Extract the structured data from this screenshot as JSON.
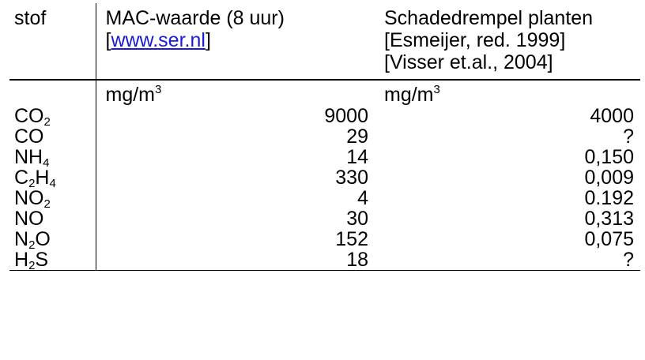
{
  "table": {
    "header": {
      "stof": "stof",
      "mac_line1": "MAC-waarde (8 uur)",
      "mac_bracket_open": "[",
      "mac_link": "www.ser.nl",
      "mac_bracket_close": "]",
      "schade_line1": "Schadedrempel planten",
      "schade_line2": "[Esmeijer, red. 1999]",
      "schade_line3": "[Visser et.al., 2004]"
    },
    "units": {
      "mac": {
        "base": "mg/m",
        "sup": "3"
      },
      "schade": {
        "base": "mg/m",
        "sup": "3"
      }
    },
    "rows": [
      {
        "stof": [
          {
            "t": "CO"
          },
          {
            "sub": "2"
          }
        ],
        "mac": "9000",
        "schade": "4000"
      },
      {
        "stof": [
          {
            "t": "CO"
          }
        ],
        "mac": "29",
        "schade": "?"
      },
      {
        "stof": [
          {
            "t": "NH"
          },
          {
            "sub": "4"
          }
        ],
        "mac": "14",
        "schade": "0,150"
      },
      {
        "stof": [
          {
            "t": "C"
          },
          {
            "sub": "2"
          },
          {
            "t": "H"
          },
          {
            "sub": "4"
          }
        ],
        "mac": "330",
        "schade": "0,009"
      },
      {
        "stof": [
          {
            "t": "NO"
          },
          {
            "sub": "2"
          }
        ],
        "mac": "4",
        "schade": "0.192"
      },
      {
        "stof": [
          {
            "t": "NO"
          }
        ],
        "mac": "30",
        "schade": "0,313"
      },
      {
        "stof": [
          {
            "t": "N"
          },
          {
            "sub": "2"
          },
          {
            "t": "O"
          }
        ],
        "mac": "152",
        "schade": "0,075"
      },
      {
        "stof": [
          {
            "t": "H"
          },
          {
            "sub": "2"
          },
          {
            "t": "S"
          }
        ],
        "mac": "18",
        "schade": "?"
      }
    ]
  }
}
